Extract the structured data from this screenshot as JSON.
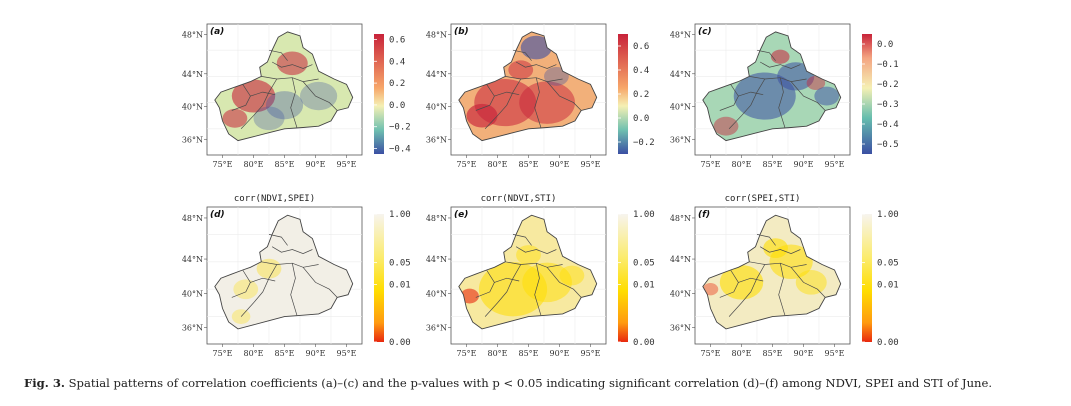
{
  "figure": {
    "caption_label": "Fig. 3.",
    "caption_text": "Spatial patterns of correlation coefficients (a)–(c) and the p-values with p < 0.05 indicating significant correlation (d)–(f) among NDVI, SPEI and STI of June.",
    "lat_ticks": [
      "48°N",
      "44°N",
      "40°N",
      "36°N"
    ],
    "lon_ticks": [
      "75°E",
      "80°E",
      "85°E",
      "90°E",
      "95°E"
    ],
    "row_titles": [
      "corr(NDVI,SPEI)",
      "corr(NDVI,STI)",
      "corr(SPEI,STI)"
    ],
    "colors": {
      "corr_high": "#c8233a",
      "corr_mid": "#f5f0b4",
      "corr_low": "#3b4fa3",
      "p_low": "#e8280f",
      "p_mid": "#ffdd00",
      "p_high": "#f7f4ee"
    }
  },
  "chart_data": [
    {
      "type": "heatmap",
      "label": "(a)",
      "variable": "corr(NDVI,SPEI)",
      "colorbar_ticks": [
        "0.6",
        "0.4",
        "0.2",
        "0.0",
        "−0.2",
        "−0.4"
      ],
      "colorbar_range": [
        -0.45,
        0.65
      ]
    },
    {
      "type": "heatmap",
      "label": "(b)",
      "variable": "corr(NDVI,STI)",
      "colorbar_ticks": [
        "0.6",
        "0.4",
        "0.2",
        "0.0",
        "−0.2"
      ],
      "colorbar_range": [
        -0.3,
        0.7
      ]
    },
    {
      "type": "heatmap",
      "label": "(c)",
      "variable": "corr(SPEI,STI)",
      "colorbar_ticks": [
        "0.0",
        "−0.1",
        "−0.2",
        "−0.3",
        "−0.4",
        "−0.5"
      ],
      "colorbar_range": [
        -0.55,
        0.05
      ]
    },
    {
      "type": "heatmap",
      "label": "(d)",
      "variable": "p-value corr(NDVI,SPEI)",
      "colorbar_ticks": [
        "1.00",
        "0.05",
        "0.01",
        "0.00"
      ],
      "colorbar_range": [
        0,
        1
      ]
    },
    {
      "type": "heatmap",
      "label": "(e)",
      "variable": "p-value corr(NDVI,STI)",
      "colorbar_ticks": [
        "1.00",
        "0.05",
        "0.01",
        "0.00"
      ],
      "colorbar_range": [
        0,
        1
      ]
    },
    {
      "type": "heatmap",
      "label": "(f)",
      "variable": "p-value corr(SPEI,STI)",
      "colorbar_ticks": [
        "1.00",
        "0.05",
        "0.01",
        "0.00"
      ],
      "colorbar_range": [
        0,
        1
      ]
    }
  ]
}
